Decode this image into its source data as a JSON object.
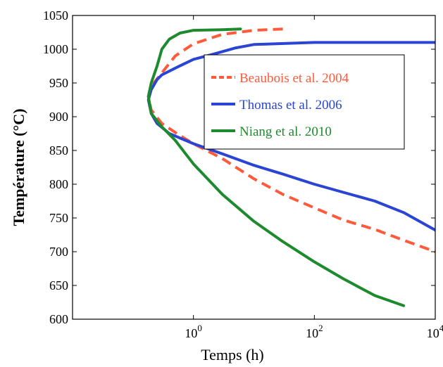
{
  "chart_data": {
    "type": "line",
    "title": "",
    "xlabel": "Temps (h)",
    "ylabel": "Température (°C)",
    "x_scale": "log",
    "xlim": [
      0.01,
      10000
    ],
    "ylim": [
      600,
      1050
    ],
    "x_ticks": [
      {
        "value": 1,
        "base": "10",
        "exp": "0"
      },
      {
        "value": 100,
        "base": "10",
        "exp": "2"
      },
      {
        "value": 10000,
        "base": "10",
        "exp": "4"
      }
    ],
    "y_ticks": [
      600,
      650,
      700,
      750,
      800,
      850,
      900,
      950,
      1000,
      1050
    ],
    "grid": false,
    "legend_position": "upper-right",
    "series": [
      {
        "name": "Beaubois et al. 2004",
        "color": "#ff5a3c",
        "style": "dashed",
        "points": [
          [
            30,
            1030
          ],
          [
            10,
            1028
          ],
          [
            3,
            1022
          ],
          [
            1,
            1008
          ],
          [
            0.5,
            990
          ],
          [
            0.3,
            965
          ],
          [
            0.2,
            945
          ],
          [
            0.18,
            930
          ],
          [
            0.2,
            910
          ],
          [
            0.3,
            890
          ],
          [
            0.6,
            872
          ],
          [
            1,
            860
          ],
          [
            3,
            838
          ],
          [
            10,
            808
          ],
          [
            30,
            785
          ],
          [
            100,
            765
          ],
          [
            300,
            747
          ],
          [
            1000,
            733
          ],
          [
            3000,
            717
          ],
          [
            10000,
            700
          ]
        ]
      },
      {
        "name": "Thomas et al. 2006",
        "color": "#2a45d4",
        "style": "solid",
        "points": [
          [
            10000,
            1010
          ],
          [
            1000,
            1010
          ],
          [
            100,
            1010
          ],
          [
            10,
            1007
          ],
          [
            5,
            1002
          ],
          [
            2,
            992
          ],
          [
            1,
            985
          ],
          [
            0.5,
            972
          ],
          [
            0.3,
            962
          ],
          [
            0.25,
            955
          ],
          [
            0.2,
            940
          ],
          [
            0.18,
            925
          ],
          [
            0.2,
            905
          ],
          [
            0.25,
            890
          ],
          [
            0.4,
            875
          ],
          [
            1,
            860
          ],
          [
            3,
            845
          ],
          [
            10,
            828
          ],
          [
            30,
            815
          ],
          [
            100,
            800
          ],
          [
            300,
            788
          ],
          [
            1000,
            775
          ],
          [
            3000,
            758
          ],
          [
            10000,
            732
          ]
        ]
      },
      {
        "name": "Niang et al. 2010",
        "color": "#1e8a2e",
        "style": "solid",
        "points": [
          [
            6,
            1030
          ],
          [
            3,
            1029
          ],
          [
            1,
            1028
          ],
          [
            0.6,
            1024
          ],
          [
            0.4,
            1015
          ],
          [
            0.3,
            1000
          ],
          [
            0.25,
            975
          ],
          [
            0.2,
            950
          ],
          [
            0.18,
            930
          ],
          [
            0.2,
            905
          ],
          [
            0.3,
            885
          ],
          [
            0.5,
            865
          ],
          [
            1,
            830
          ],
          [
            3,
            785
          ],
          [
            10,
            745
          ],
          [
            30,
            715
          ],
          [
            100,
            685
          ],
          [
            300,
            660
          ],
          [
            1000,
            635
          ],
          [
            3000,
            620
          ]
        ]
      }
    ]
  }
}
